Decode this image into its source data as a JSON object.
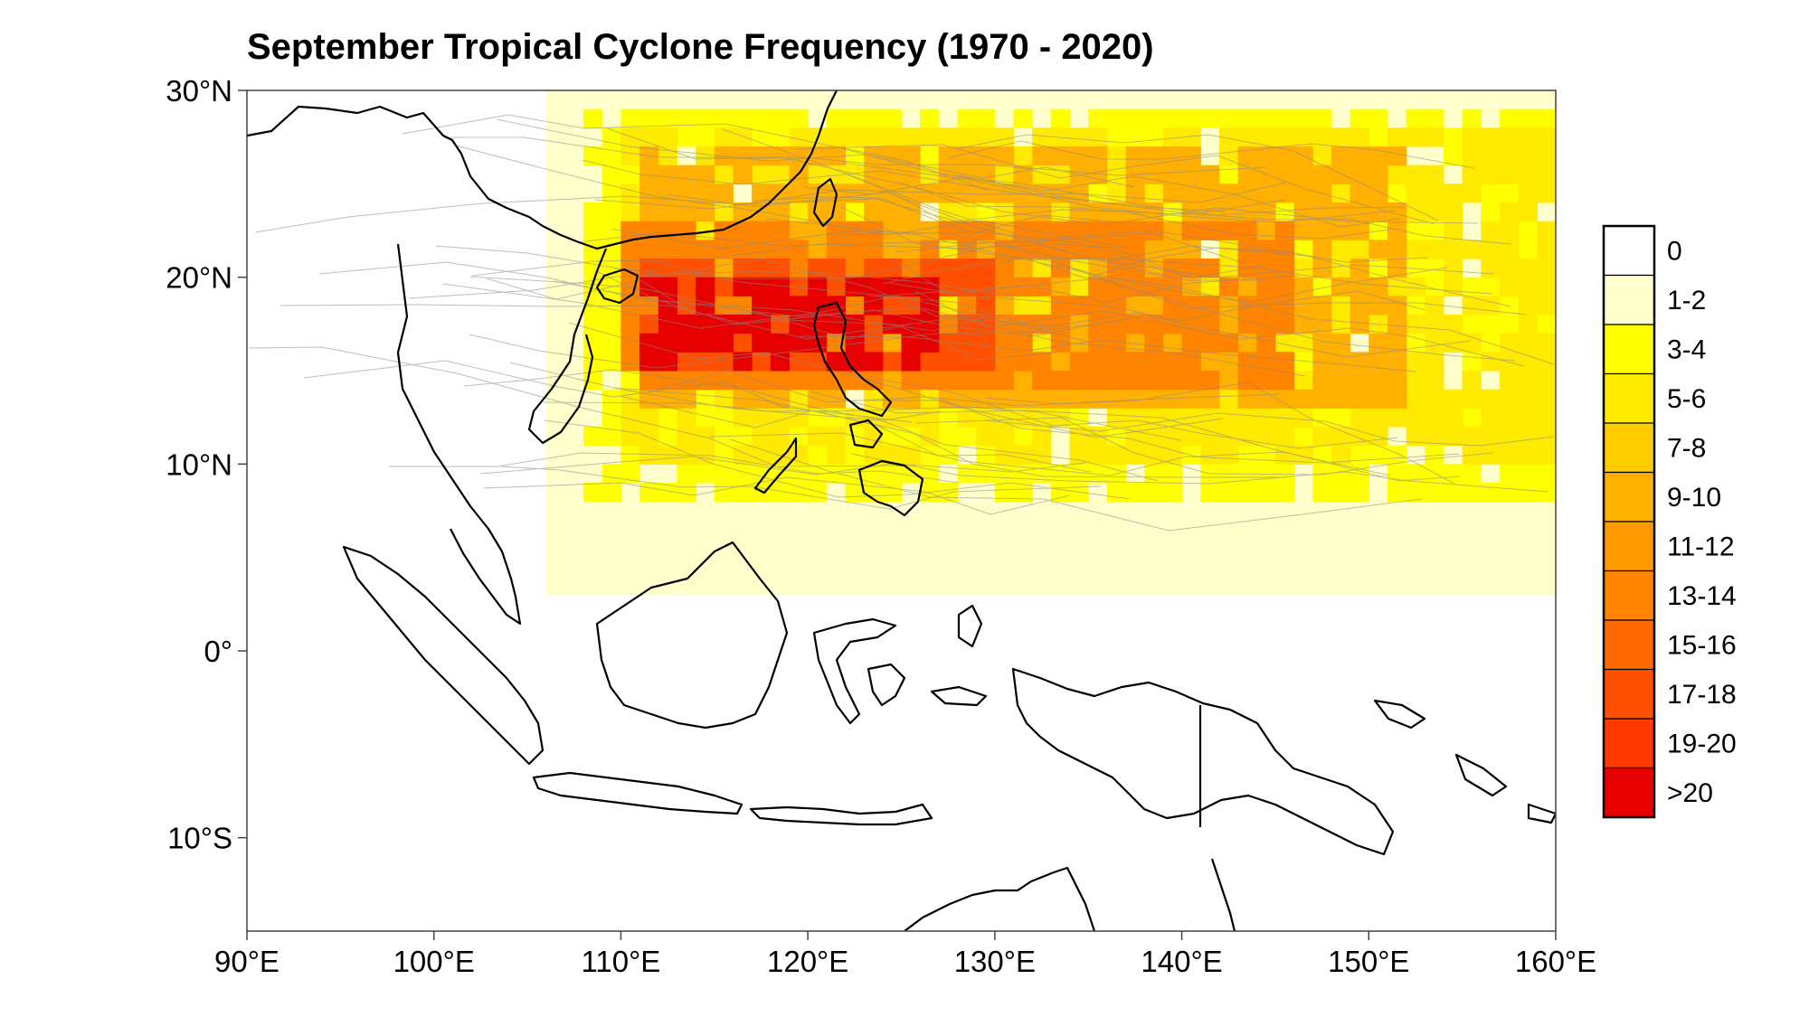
{
  "title": "September Tropical Cyclone Frequency (1970 - 2020)",
  "map": {
    "lon_range": [
      90,
      160
    ],
    "lat_range": [
      -15,
      30
    ],
    "x_ticks": [
      {
        "lon": 90,
        "label": "90°E"
      },
      {
        "lon": 100,
        "label": "100°E"
      },
      {
        "lon": 110,
        "label": "110°E"
      },
      {
        "lon": 120,
        "label": "120°E"
      },
      {
        "lon": 130,
        "label": "130°E"
      },
      {
        "lon": 140,
        "label": "140°E"
      },
      {
        "lon": 150,
        "label": "150°E"
      },
      {
        "lon": 160,
        "label": "160°E"
      }
    ],
    "y_ticks": [
      {
        "lat": 30,
        "label": "30°N"
      },
      {
        "lat": 20,
        "label": "20°N"
      },
      {
        "lat": 10,
        "label": "10°N"
      },
      {
        "lat": 0,
        "label": "0°"
      },
      {
        "lat": -10,
        "label": "10°S"
      }
    ]
  },
  "legend": {
    "position": "right",
    "entries": [
      {
        "label": "0",
        "color": "#ffffff"
      },
      {
        "label": "1-2",
        "color": "#ffffcc"
      },
      {
        "label": "3-4",
        "color": "#ffff00"
      },
      {
        "label": "5-6",
        "color": "#ffea00"
      },
      {
        "label": "7-8",
        "color": "#ffcc00"
      },
      {
        "label": "9-10",
        "color": "#ffb000"
      },
      {
        "label": "11-12",
        "color": "#ff9a00"
      },
      {
        "label": "13-14",
        "color": "#ff8400"
      },
      {
        "label": "15-16",
        "color": "#ff6a00"
      },
      {
        "label": "17-18",
        "color": "#ff5000"
      },
      {
        "label": "19-20",
        "color": "#ff3a00"
      },
      {
        "label": ">20",
        "color": "#e60000"
      }
    ]
  },
  "frequency_bands": [
    {
      "name": "1-2",
      "color": "#ffffcc",
      "lat": [
        3,
        30
      ],
      "lon": [
        106,
        160
      ]
    },
    {
      "name": "3-4",
      "color": "#ffff00",
      "lat": [
        8,
        29
      ],
      "lon": [
        108,
        160
      ]
    },
    {
      "name": "5-6",
      "color": "#ffea00",
      "lat": [
        10,
        28
      ],
      "lon": [
        110,
        160
      ]
    },
    {
      "name": "9-10",
      "color": "#ffb000",
      "lat": [
        13,
        27
      ],
      "lon": [
        111,
        152
      ]
    },
    {
      "name": "13-14",
      "color": "#ff8400",
      "lat": [
        14,
        23
      ],
      "lon": [
        110,
        146
      ]
    },
    {
      "name": "17-18",
      "color": "#ff5000",
      "lat": [
        15,
        21
      ],
      "lon": [
        111,
        130
      ]
    },
    {
      "name": ">20",
      "color": "#e60000",
      "lat": [
        15,
        20
      ],
      "lon": [
        111,
        127
      ]
    }
  ]
}
